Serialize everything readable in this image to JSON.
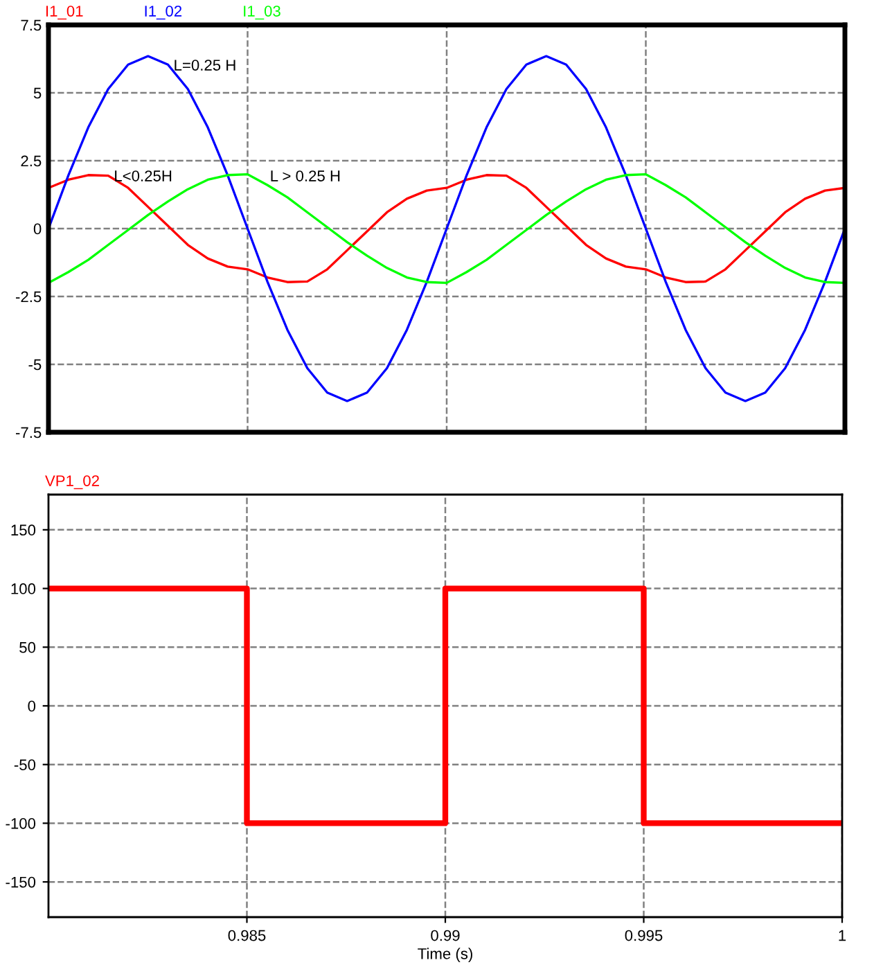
{
  "chart_data": [
    {
      "type": "line",
      "legend": "top left",
      "grid": true,
      "line_style": "solid",
      "tick_labels": "y",
      "xlim": [
        0.98,
        1.0
      ],
      "ylim": [
        -7.5,
        7.5
      ],
      "xticks": [
        {
          "value": 0.985,
          "label": null
        },
        {
          "value": 0.99,
          "label": null
        },
        {
          "value": 0.995,
          "label": null
        }
      ],
      "yticks": [
        -7.5,
        -5,
        -2.5,
        0,
        2.5,
        5,
        7.5
      ],
      "x": [
        0.98,
        0.9805,
        0.981,
        0.9815,
        0.982,
        0.9825,
        0.983,
        0.9835,
        0.984,
        0.9845,
        0.985,
        0.9855,
        0.986,
        0.9865,
        0.987,
        0.9875,
        0.988,
        0.9885,
        0.989,
        0.9895,
        0.99,
        0.9905,
        0.991,
        0.9915,
        0.992,
        0.9925,
        0.993,
        0.9935,
        0.994,
        0.9945,
        0.995,
        0.9955,
        0.996,
        0.9965,
        0.997,
        0.9975,
        0.998,
        0.9985,
        0.999,
        0.9995,
        1.0
      ],
      "series": [
        {
          "name": "I1_01",
          "color": "#ff0000",
          "values": [
            1.5,
            1.8,
            1.97,
            1.95,
            1.5,
            0.8,
            0.1,
            -0.6,
            -1.1,
            -1.4,
            -1.5,
            -1.8,
            -1.97,
            -1.95,
            -1.5,
            -0.8,
            -0.1,
            0.6,
            1.1,
            1.4,
            1.5,
            1.8,
            1.97,
            1.95,
            1.5,
            0.8,
            0.1,
            -0.6,
            -1.1,
            -1.4,
            -1.5,
            -1.8,
            -1.97,
            -1.95,
            -1.5,
            -0.8,
            -0.1,
            0.6,
            1.1,
            1.4,
            1.5
          ]
        },
        {
          "name": "I1_02",
          "color": "#0000ff",
          "values": [
            0,
            1.96,
            3.73,
            5.14,
            6.04,
            6.35,
            6.04,
            5.14,
            3.73,
            1.96,
            0,
            -1.96,
            -3.73,
            -5.14,
            -6.04,
            -6.35,
            -6.04,
            -5.14,
            -3.73,
            -1.96,
            0,
            1.96,
            3.73,
            5.14,
            6.04,
            6.35,
            6.04,
            5.14,
            3.73,
            1.96,
            0,
            -1.96,
            -3.73,
            -5.14,
            -6.04,
            -6.35,
            -6.04,
            -5.14,
            -3.73,
            -1.96,
            0
          ]
        },
        {
          "name": "I1_03",
          "color": "#00ff00",
          "values": [
            -2,
            -1.6,
            -1.15,
            -0.6,
            -0.05,
            0.5,
            1.0,
            1.45,
            1.8,
            1.97,
            2.0,
            1.6,
            1.15,
            0.6,
            0.05,
            -0.5,
            -1.0,
            -1.45,
            -1.8,
            -1.97,
            -2.0,
            -1.6,
            -1.15,
            -0.6,
            -0.05,
            0.5,
            1.0,
            1.45,
            1.8,
            1.97,
            2.0,
            1.6,
            1.15,
            0.6,
            0.05,
            -0.5,
            -1.0,
            -1.45,
            -1.8,
            -1.97,
            -2.0
          ]
        }
      ],
      "annotations": [
        "L=0.25 H",
        "L<0.25H",
        "L > 0.25 H"
      ]
    },
    {
      "type": "step",
      "legend": "top left",
      "grid": true,
      "line_style": "solid",
      "xlabel": "Time (s)",
      "xlim": [
        0.98,
        1.0
      ],
      "ylim": [
        -180,
        180
      ],
      "xticks": [
        0.985,
        0.99,
        0.995,
        1
      ],
      "yticks": [
        -150,
        -100,
        -50,
        0,
        50,
        100,
        150
      ],
      "x": [
        0.98,
        0.985,
        0.99,
        0.995,
        1.0
      ],
      "series": [
        {
          "name": "VP1_02",
          "color": "#ff0000",
          "values": [
            100,
            -100,
            100,
            -100,
            -100
          ]
        }
      ]
    }
  ]
}
